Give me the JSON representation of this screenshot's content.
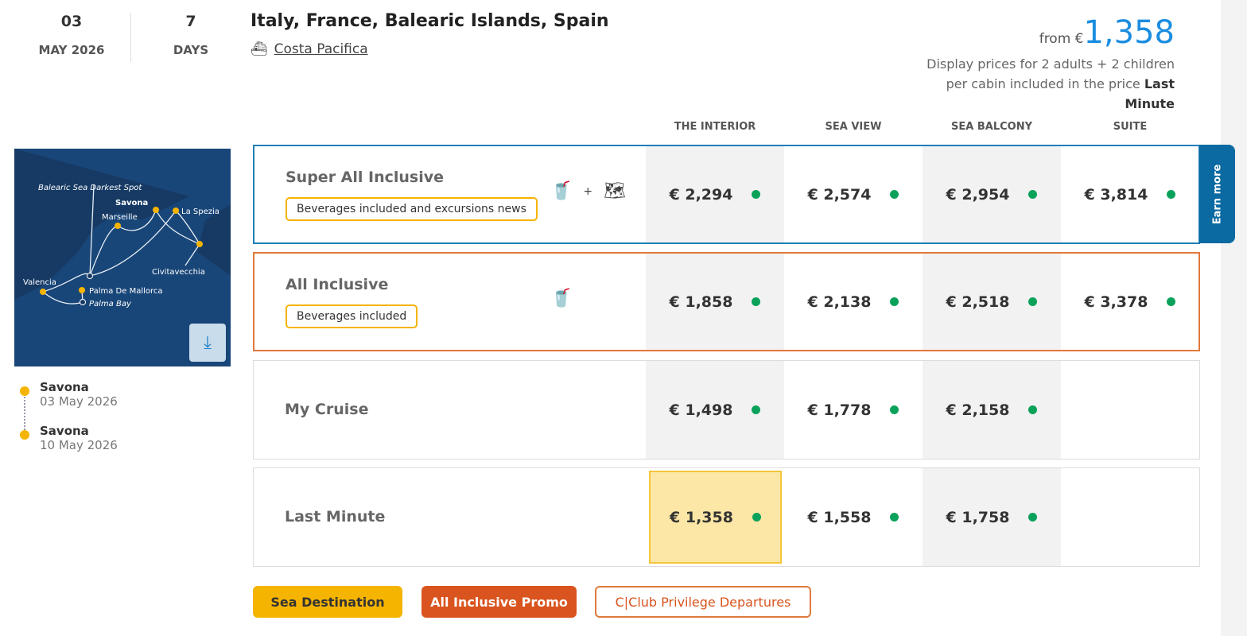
{
  "header": {
    "day": "03",
    "month_year": "MAY 2026",
    "days_count": "7",
    "days_label": "DAYS",
    "title": "Italy, France, Balearic Islands, Spain",
    "ship": "Costa Pacifica"
  },
  "price": {
    "from_label": "from €",
    "amount": "1,358",
    "note": "Display prices for 2 adults + 2 children per cabin included in the price",
    "note_bold": "Last Minute"
  },
  "columns": [
    "THE INTERIOR",
    "SEA VIEW",
    "SEA BALCONY",
    "SUITE"
  ],
  "map": {
    "labels": [
      "Balearic Sea Darkest Spot",
      "Savona",
      "Marseille",
      "La Spezia",
      "Civitavecchia",
      "Valencia",
      "Palma De Mallorca",
      "Palma Bay"
    ]
  },
  "itinerary": [
    {
      "port": "Savona",
      "date": "03 May 2026"
    },
    {
      "port": "Savona",
      "date": "10 May 2026"
    }
  ],
  "rows": [
    {
      "name": "Super All Inclusive",
      "badge": "Beverages included and excursions news",
      "prices": [
        "€ 2,294",
        "€ 2,574",
        "€ 2,954",
        "€ 3,814"
      ]
    },
    {
      "name": "All Inclusive",
      "badge": "Beverages included",
      "prices": [
        "€ 1,858",
        "€ 2,138",
        "€ 2,518",
        "€ 3,378"
      ]
    },
    {
      "name": "My Cruise",
      "prices": [
        "€ 1,498",
        "€ 1,778",
        "€ 2,158"
      ]
    },
    {
      "name": "Last Minute",
      "prices": [
        "€ 1,358",
        "€ 1,558",
        "€ 1,758"
      ]
    }
  ],
  "earn_more": "Earn more",
  "tags": [
    "Sea Destination",
    "All Inclusive Promo",
    "C|Club Privilege Departures"
  ],
  "colors": {
    "accent": "#1a8de0",
    "super_border": "#1f7fb8",
    "all_border": "#e07a3c",
    "available": "#0aa25a",
    "yellow": "#f5b400",
    "orange": "#d9541e"
  }
}
